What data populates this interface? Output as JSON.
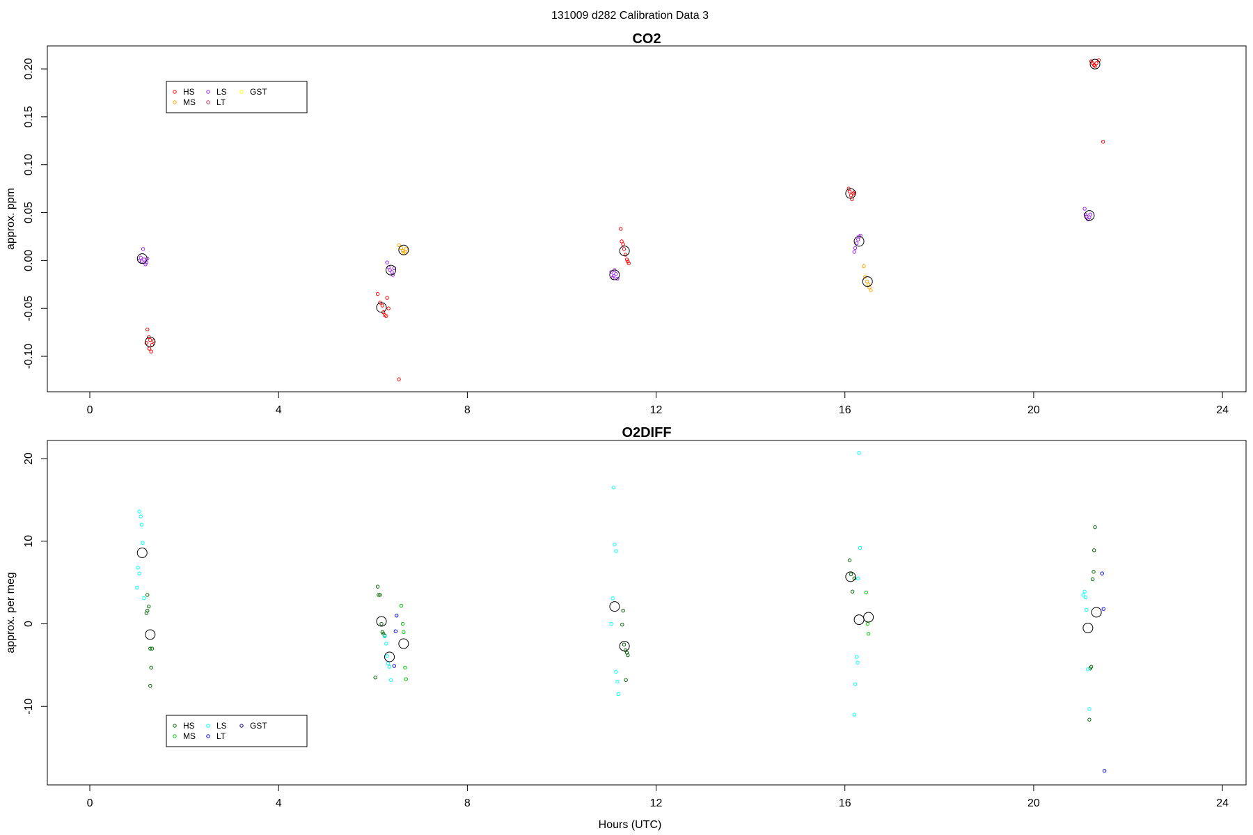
{
  "page": {
    "title": "131009   d282   Calibration Data 3",
    "xlabel": "Hours (UTC)"
  },
  "chart_data": [
    {
      "type": "scatter",
      "title": "CO2",
      "xlabel": "",
      "ylabel": "approx. ppm",
      "xlim": [
        -0.9,
        24.5
      ],
      "ylim": [
        -0.137,
        0.224
      ],
      "xticks": [
        0,
        4,
        8,
        12,
        16,
        20,
        24
      ],
      "yticks": [
        -0.1,
        -0.05,
        0.0,
        0.05,
        0.1,
        0.15,
        0.2
      ],
      "ytick_labels": [
        "-0.10",
        "-0.05",
        "0.00",
        "0.05",
        "0.10",
        "0.15",
        "0.20"
      ],
      "grid": false,
      "legend_position": "top-left",
      "legend": [
        {
          "label": "HS",
          "color": "#ff0000"
        },
        {
          "label": "MS",
          "color": "#ffa500"
        },
        {
          "label": "LS",
          "color": "#a020f0"
        },
        {
          "label": "LT",
          "color": "#b03060"
        },
        {
          "label": "GST",
          "color": "#ffff00"
        }
      ],
      "series": [
        {
          "name": "HS",
          "color": "#ff0000",
          "points": [
            [
              1.22,
              -0.072
            ],
            [
              1.25,
              -0.08
            ],
            [
              1.28,
              -0.083
            ],
            [
              1.2,
              -0.086
            ],
            [
              1.32,
              -0.088
            ],
            [
              1.26,
              -0.092
            ],
            [
              1.3,
              -0.095
            ],
            [
              1.35,
              -0.084
            ],
            [
              6.1,
              -0.035
            ],
            [
              6.15,
              -0.044
            ],
            [
              6.2,
              -0.047
            ],
            [
              6.22,
              -0.054
            ],
            [
              6.25,
              -0.057
            ],
            [
              6.28,
              -0.058
            ],
            [
              6.3,
              -0.039
            ],
            [
              6.33,
              -0.05
            ],
            [
              6.55,
              -0.124
            ],
            [
              11.25,
              0.033
            ],
            [
              11.27,
              0.02
            ],
            [
              11.3,
              0.017
            ],
            [
              11.32,
              0.012
            ],
            [
              11.35,
              0.006
            ],
            [
              11.38,
              0.001
            ],
            [
              11.4,
              -0.001
            ],
            [
              11.42,
              -0.003
            ],
            [
              16.08,
              0.075
            ],
            [
              16.1,
              0.072
            ],
            [
              16.13,
              0.068
            ],
            [
              16.15,
              0.064
            ],
            [
              16.18,
              0.07
            ],
            [
              16.2,
              0.071
            ],
            [
              21.22,
              0.208
            ],
            [
              21.25,
              0.206
            ],
            [
              21.28,
              0.204
            ],
            [
              21.3,
              0.203
            ],
            [
              21.33,
              0.206
            ],
            [
              21.38,
              0.209
            ],
            [
              21.47,
              0.124
            ]
          ]
        },
        {
          "name": "LS",
          "color": "#a020f0",
          "points": [
            [
              1.05,
              0.0
            ],
            [
              1.08,
              0.003
            ],
            [
              1.1,
              -0.001
            ],
            [
              1.13,
              0.012
            ],
            [
              1.15,
              0.001
            ],
            [
              1.18,
              -0.004
            ],
            [
              1.2,
              -0.002
            ],
            [
              1.22,
              0.002
            ],
            [
              6.3,
              -0.002
            ],
            [
              6.33,
              -0.007
            ],
            [
              6.36,
              -0.01
            ],
            [
              6.4,
              -0.012
            ],
            [
              6.42,
              -0.015
            ],
            [
              6.45,
              -0.008
            ],
            [
              11.05,
              -0.012
            ],
            [
              11.08,
              -0.018
            ],
            [
              11.1,
              -0.016
            ],
            [
              11.12,
              -0.01
            ],
            [
              11.15,
              -0.014
            ],
            [
              11.18,
              -0.019
            ],
            [
              16.22,
              0.013
            ],
            [
              16.25,
              0.018
            ],
            [
              16.28,
              0.022
            ],
            [
              16.3,
              0.025
            ],
            [
              16.33,
              0.026
            ],
            [
              16.2,
              0.009
            ],
            [
              21.08,
              0.054
            ],
            [
              21.1,
              0.048
            ],
            [
              21.12,
              0.046
            ],
            [
              21.15,
              0.043
            ],
            [
              21.18,
              0.045
            ],
            [
              21.2,
              0.048
            ]
          ]
        },
        {
          "name": "MS",
          "color": "#ffa500",
          "points": [
            [
              6.55,
              0.016
            ],
            [
              6.6,
              0.013
            ],
            [
              6.63,
              0.01
            ],
            [
              6.68,
              0.009
            ],
            [
              6.7,
              0.012
            ],
            [
              6.65,
              0.008
            ],
            [
              16.4,
              -0.006
            ],
            [
              16.43,
              -0.017
            ],
            [
              16.47,
              -0.022
            ],
            [
              16.5,
              -0.025
            ],
            [
              16.52,
              -0.028
            ],
            [
              16.55,
              -0.031
            ]
          ]
        }
      ],
      "means": [
        [
          1.11,
          0.002
        ],
        [
          1.28,
          -0.085
        ],
        [
          6.18,
          -0.049
        ],
        [
          6.38,
          -0.01
        ],
        [
          6.65,
          0.011
        ],
        [
          11.12,
          -0.015
        ],
        [
          11.33,
          0.01
        ],
        [
          16.12,
          0.07
        ],
        [
          16.3,
          0.02
        ],
        [
          16.48,
          -0.022
        ],
        [
          21.18,
          0.047
        ],
        [
          21.3,
          0.205
        ]
      ]
    },
    {
      "type": "scatter",
      "title": "O2DIFF",
      "xlabel": "Hours (UTC)",
      "ylabel": "approx. per meg",
      "xlim": [
        -0.9,
        24.5
      ],
      "ylim": [
        -19.5,
        22.2
      ],
      "xticks": [
        0,
        4,
        8,
        12,
        16,
        20,
        24
      ],
      "yticks": [
        -10,
        0,
        10,
        20
      ],
      "ytick_labels": [
        "-10",
        "0",
        "10",
        "20"
      ],
      "grid": false,
      "legend_position": "bottom-left",
      "legend": [
        {
          "label": "HS",
          "color": "#006400"
        },
        {
          "label": "MS",
          "color": "#00c800"
        },
        {
          "label": "LS",
          "color": "#00ffff"
        },
        {
          "label": "LT",
          "color": "#0000ff"
        },
        {
          "label": "GST",
          "color": "#000080"
        }
      ],
      "series": [
        {
          "name": "HS",
          "color": "#006400",
          "points": [
            [
              1.22,
              3.5
            ],
            [
              1.25,
              2.1
            ],
            [
              1.2,
              1.3
            ],
            [
              1.22,
              1.6
            ],
            [
              1.28,
              -3.0
            ],
            [
              1.32,
              -3.0
            ],
            [
              1.3,
              -5.3
            ],
            [
              1.28,
              -7.5
            ],
            [
              6.1,
              4.5
            ],
            [
              6.12,
              3.5
            ],
            [
              6.15,
              3.5
            ],
            [
              6.18,
              0.0
            ],
            [
              6.2,
              -1.0
            ],
            [
              6.22,
              -1.2
            ],
            [
              6.25,
              -1.4
            ],
            [
              6.05,
              -6.5
            ],
            [
              11.3,
              1.6
            ],
            [
              11.28,
              -0.1
            ],
            [
              11.32,
              -2.5
            ],
            [
              11.35,
              -3.2
            ],
            [
              11.38,
              -3.5
            ],
            [
              11.4,
              -3.8
            ],
            [
              11.36,
              -6.8
            ],
            [
              16.1,
              7.7
            ],
            [
              16.13,
              6.0
            ],
            [
              16.16,
              3.9
            ],
            [
              16.2,
              5.5
            ],
            [
              21.3,
              11.7
            ],
            [
              21.28,
              8.9
            ],
            [
              21.27,
              6.3
            ],
            [
              21.25,
              5.4
            ],
            [
              21.22,
              -5.2
            ],
            [
              21.2,
              -5.4
            ],
            [
              21.18,
              -11.6
            ]
          ]
        },
        {
          "name": "MS",
          "color": "#00c800",
          "points": [
            [
              6.6,
              2.2
            ],
            [
              6.63,
              0.0
            ],
            [
              6.65,
              -1.0
            ],
            [
              6.68,
              -5.3
            ],
            [
              6.7,
              -6.7
            ],
            [
              16.45,
              3.8
            ],
            [
              16.48,
              0.0
            ],
            [
              16.5,
              -1.2
            ]
          ]
        },
        {
          "name": "LS",
          "color": "#00ffff",
          "points": [
            [
              1.05,
              13.6
            ],
            [
              1.08,
              13.0
            ],
            [
              1.1,
              12.0
            ],
            [
              1.12,
              9.8
            ],
            [
              1.02,
              6.8
            ],
            [
              1.05,
              6.1
            ],
            [
              1.0,
              4.4
            ],
            [
              1.15,
              3.1
            ],
            [
              6.28,
              -2.4
            ],
            [
              6.3,
              -3.9
            ],
            [
              6.32,
              -4.8
            ],
            [
              6.35,
              -5.2
            ],
            [
              6.38,
              -6.8
            ],
            [
              6.25,
              -1.5
            ],
            [
              11.1,
              16.5
            ],
            [
              11.12,
              9.6
            ],
            [
              11.15,
              8.8
            ],
            [
              11.08,
              3.1
            ],
            [
              11.05,
              0.0
            ],
            [
              11.15,
              -5.8
            ],
            [
              11.18,
              -7.0
            ],
            [
              11.2,
              -8.5
            ],
            [
              16.3,
              20.7
            ],
            [
              16.32,
              9.2
            ],
            [
              16.28,
              5.5
            ],
            [
              16.25,
              -4.0
            ],
            [
              16.27,
              -4.7
            ],
            [
              16.22,
              -7.3
            ],
            [
              16.2,
              -11.0
            ],
            [
              21.05,
              3.5
            ],
            [
              21.08,
              3.9
            ],
            [
              21.1,
              3.2
            ],
            [
              21.12,
              1.7
            ],
            [
              21.15,
              -5.5
            ],
            [
              21.18,
              -10.3
            ]
          ]
        },
        {
          "name": "LT",
          "color": "#0000ff",
          "points": [
            [
              6.5,
              1.0
            ],
            [
              6.48,
              -0.9
            ],
            [
              6.45,
              -5.1
            ],
            [
              21.45,
              6.1
            ],
            [
              21.48,
              1.8
            ],
            [
              21.5,
              -17.8
            ]
          ]
        }
      ],
      "means": [
        [
          1.11,
          8.6
        ],
        [
          1.28,
          -1.3
        ],
        [
          6.18,
          0.3
        ],
        [
          6.35,
          -4.0
        ],
        [
          6.65,
          -2.4
        ],
        [
          11.12,
          2.1
        ],
        [
          11.33,
          -2.7
        ],
        [
          16.12,
          5.7
        ],
        [
          16.3,
          0.5
        ],
        [
          16.5,
          0.8
        ],
        [
          21.15,
          -0.5
        ],
        [
          21.33,
          1.4
        ]
      ]
    }
  ]
}
